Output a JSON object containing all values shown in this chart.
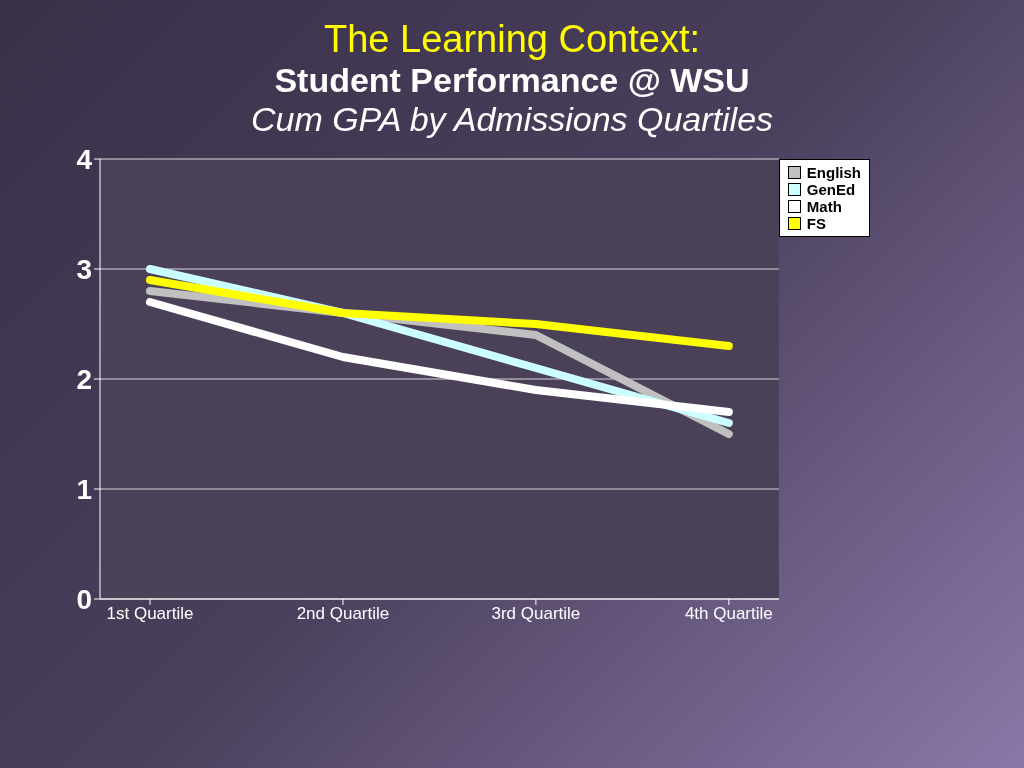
{
  "chart_data": {
    "type": "line",
    "title": "The Learning Context:",
    "subtitle": "Student Performance @ WSU\nCum GPA by Admissions Quartiles",
    "categories": [
      "1st Quartile",
      "2nd Quartile",
      "3rd Quartile",
      "4th Quartile"
    ],
    "series": [
      {
        "name": "English",
        "color": "#c0c0c0",
        "values": [
          2.8,
          2.6,
          2.4,
          1.5
        ]
      },
      {
        "name": "GenEd",
        "color": "#ccffff",
        "values": [
          3.0,
          2.6,
          2.1,
          1.6
        ]
      },
      {
        "name": "Math",
        "color": "#ffffff",
        "values": [
          2.7,
          2.2,
          1.9,
          1.7
        ]
      },
      {
        "name": "FS",
        "color": "#ffff00",
        "values": [
          2.9,
          2.6,
          2.5,
          2.3
        ]
      }
    ],
    "ylim": [
      0,
      4
    ],
    "yticks": [
      0,
      1,
      2,
      3,
      4
    ],
    "grid": "y",
    "legend": "top right",
    "marker": "none",
    "line_style": "solid"
  }
}
